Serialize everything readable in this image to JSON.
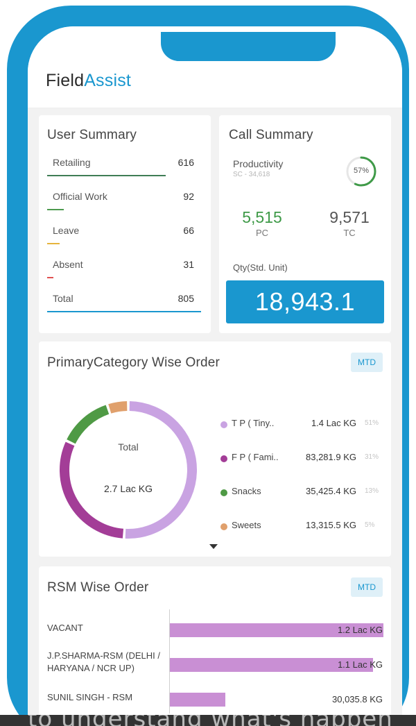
{
  "app": {
    "logo_primary": "Field",
    "logo_accent": "Assist"
  },
  "user_summary": {
    "title": "User Summary",
    "rows": [
      {
        "label": "Retailing",
        "value": "616",
        "color": "#3f7d55",
        "fraction": 0.77
      },
      {
        "label": "Official Work",
        "value": "92",
        "color": "#4c9a4e",
        "fraction": 0.11
      },
      {
        "label": "Leave",
        "value": "66",
        "color": "#e6b43c",
        "fraction": 0.08
      },
      {
        "label": "Absent",
        "value": "31",
        "color": "#e05050",
        "fraction": 0.04
      },
      {
        "label": "Total",
        "value": "805",
        "color": "#1a97cf",
        "fraction": 1.0
      }
    ]
  },
  "call_summary": {
    "title": "Call Summary",
    "productivity_label": "Productivity",
    "productivity_sub": "SC - 34,618",
    "productivity_pct": "57%",
    "productivity_value": 57,
    "pc_value": "5,515",
    "pc_label": "PC",
    "tc_value": "9,571",
    "tc_label": "TC",
    "qty_label": "Qty(Std. Unit)",
    "qty_value": "18,943.1",
    "accent": "#1a97cf",
    "ring_color": "#3f9a48"
  },
  "category": {
    "title": "PrimaryCategory Wise Order",
    "badge": "MTD",
    "total_label": "Total",
    "total_value": "2.7 Lac KG",
    "items": [
      {
        "name": "T P ( Tiny..",
        "amount": "1.4 Lac KG",
        "pct": "51%",
        "share": 51,
        "color": "#c9a3e2"
      },
      {
        "name": "F P ( Fami..",
        "amount": "83,281.9 KG",
        "pct": "31%",
        "share": 31,
        "color": "#a33d97"
      },
      {
        "name": "Snacks",
        "amount": "35,425.4 KG",
        "pct": "13%",
        "share": 13,
        "color": "#4f9a45"
      },
      {
        "name": "Sweets",
        "amount": "13,315.5 KG",
        "pct": "5%",
        "share": 5,
        "color": "#e0a06c"
      }
    ]
  },
  "rsm": {
    "title": "RSM Wise Order",
    "badge": "MTD",
    "bar_color": "#c98fd4",
    "rows": [
      {
        "name": "VACANT",
        "value": "1.2 Lac KG",
        "fraction": 1.0
      },
      {
        "name": "J.P.SHARMA-RSM (DELHI / HARYANA / NCR UP)",
        "value": "1.1 Lac KG",
        "fraction": 0.95
      },
      {
        "name": "SUNIL SINGH - RSM",
        "value": "30,035.8 KG",
        "fraction": 0.26
      }
    ]
  }
}
